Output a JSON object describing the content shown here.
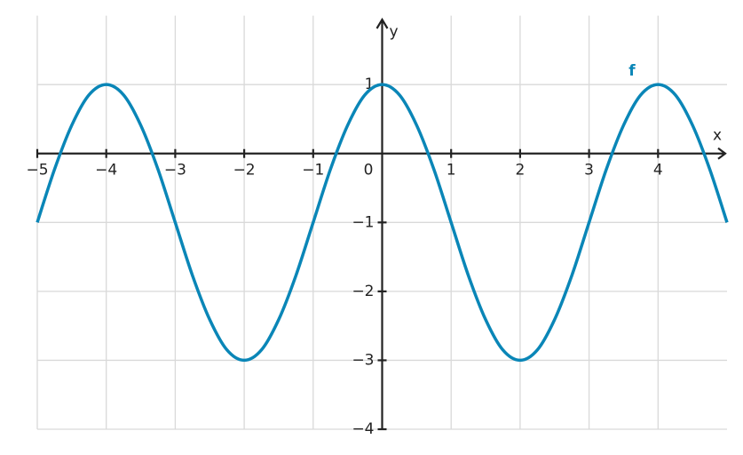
{
  "chart_data": {
    "type": "line",
    "x_label": "x",
    "y_label": "y",
    "xlim": [
      -5,
      5
    ],
    "ylim": [
      -4,
      2
    ],
    "xticks": [
      {
        "value": -5,
        "label": "−5"
      },
      {
        "value": -4,
        "label": "−4"
      },
      {
        "value": -3,
        "label": "−3"
      },
      {
        "value": -2,
        "label": "−2"
      },
      {
        "value": -1,
        "label": "−1"
      },
      0,
      1,
      2,
      3,
      4
    ],
    "yticks": [
      {
        "value": -4,
        "label": "−4"
      },
      {
        "value": -3,
        "label": "−3"
      },
      {
        "value": -2,
        "label": "−2"
      },
      {
        "value": -1,
        "label": "−1"
      },
      1
    ],
    "grid": true,
    "x": [
      -5,
      -4.75,
      -4.5,
      -4.25,
      -4,
      -3.75,
      -3.5,
      -3.25,
      -3,
      -2.75,
      -2.5,
      -2.25,
      -2,
      -1.75,
      -1.5,
      -1.25,
      -1,
      -0.75,
      -0.5,
      -0.25,
      0,
      0.25,
      0.5,
      0.75,
      1,
      1.25,
      1.5,
      1.75,
      2,
      2.25,
      2.5,
      2.75,
      3,
      3.25,
      3.5,
      3.75,
      4,
      4.25,
      4.5,
      4.75,
      5
    ],
    "series": [
      {
        "name": "f",
        "color": "#0a86b7",
        "values": [
          -1,
          -0.23,
          0.41,
          0.85,
          1,
          0.85,
          0.41,
          -0.23,
          -1,
          -1.77,
          -2.41,
          -2.85,
          -3,
          -2.85,
          -2.41,
          -1.77,
          -1,
          -0.23,
          0.41,
          0.85,
          1,
          0.85,
          0.41,
          -0.23,
          -1,
          -1.77,
          -2.41,
          -2.85,
          -3,
          -2.85,
          -2.41,
          -1.77,
          -1,
          -0.23,
          0.41,
          0.85,
          1,
          0.85,
          0.41,
          -0.23,
          -1
        ]
      }
    ]
  }
}
